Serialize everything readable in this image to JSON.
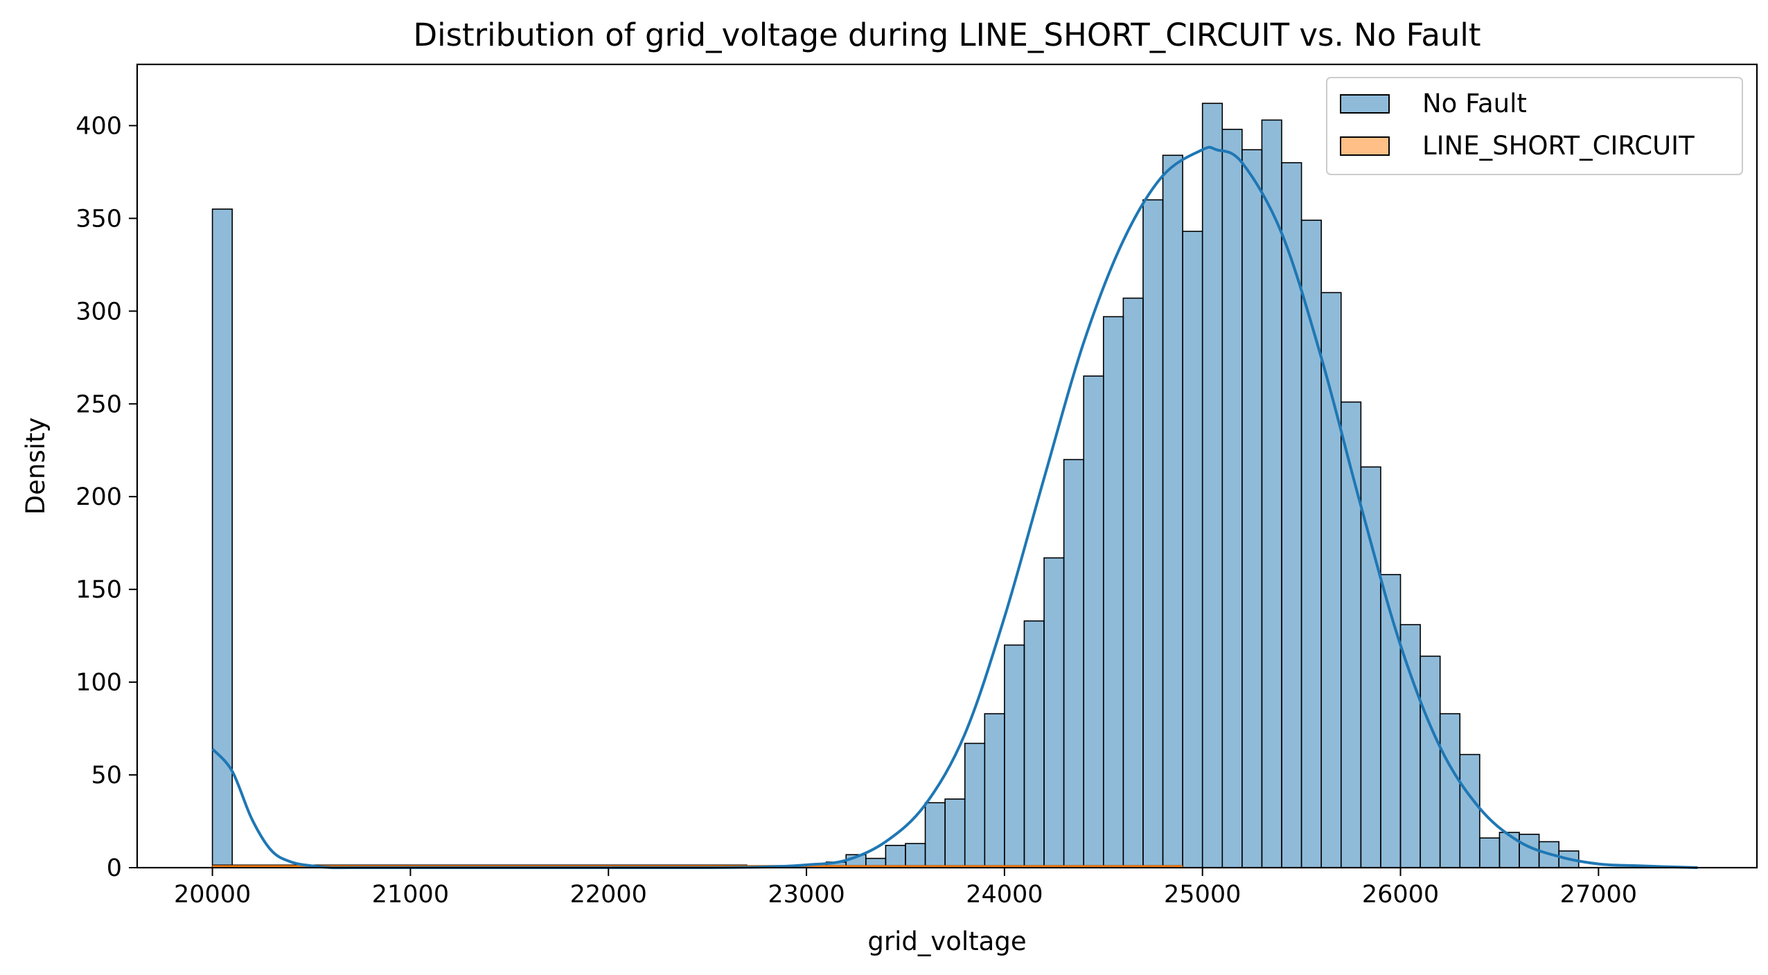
{
  "chart_data": {
    "type": "histogram",
    "title": "Distribution of grid_voltage during LINE_SHORT_CIRCUIT vs. No Fault",
    "xlabel": "grid_voltage",
    "ylabel": "Density",
    "xlim": [
      19620,
      27800
    ],
    "ylim": [
      0,
      433
    ],
    "xticks": [
      20000,
      21000,
      22000,
      23000,
      24000,
      25000,
      26000,
      27000
    ],
    "yticks": [
      0,
      50,
      100,
      150,
      200,
      250,
      300,
      350,
      400
    ],
    "bin_width": 100,
    "grid": false,
    "legend_position": "top-right",
    "series": [
      {
        "name": "No Fault",
        "color": "#1f77b4",
        "bins_start": [
          20000,
          23000,
          23100,
          23200,
          23300,
          23400,
          23500,
          23600,
          23700,
          23800,
          23900,
          24000,
          24100,
          24200,
          24300,
          24400,
          24500,
          24600,
          24700,
          24800,
          24900,
          25000,
          25100,
          25200,
          25300,
          25400,
          25500,
          25600,
          25700,
          25800,
          25900,
          26000,
          26100,
          26200,
          26300,
          26400,
          26500,
          26600,
          26700,
          26800
        ],
        "counts": [
          355,
          1,
          3,
          7,
          5,
          12,
          13,
          35,
          37,
          67,
          83,
          120,
          133,
          167,
          220,
          265,
          297,
          307,
          360,
          384,
          343,
          412,
          398,
          387,
          403,
          380,
          349,
          310,
          251,
          216,
          158,
          131,
          114,
          83,
          61,
          16,
          19,
          18,
          14,
          9
        ],
        "kde_x": [
          20000,
          20100,
          20200,
          20300,
          20400,
          20500,
          20600,
          20700,
          21000,
          22000,
          22500,
          22800,
          23000,
          23200,
          23400,
          23600,
          23800,
          24000,
          24200,
          24400,
          24600,
          24800,
          25000,
          25070,
          25200,
          25400,
          25600,
          25800,
          26000,
          26200,
          26400,
          26600,
          26800,
          27000,
          27200,
          27500
        ],
        "kde_y": [
          64,
          52,
          26,
          9,
          3,
          1,
          0,
          0,
          0,
          0,
          0,
          0.4,
          1.5,
          4,
          14,
          34,
          72,
          135,
          210,
          283,
          338,
          373,
          387,
          387,
          380,
          342,
          275,
          195,
          120,
          65,
          32,
          14,
          6,
          2,
          1,
          0
        ]
      },
      {
        "name": "LINE_SHORT_CIRCUIT",
        "color": "#ff7f0e",
        "bins_start": [
          20000,
          22700
        ],
        "bins_end": [
          22700,
          24900
        ],
        "counts": [
          1.5,
          1.2
        ]
      }
    ]
  }
}
